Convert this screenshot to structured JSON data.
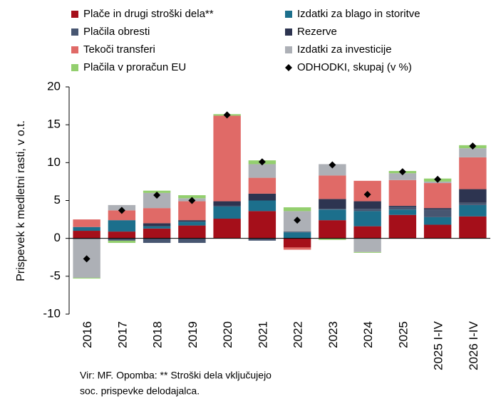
{
  "chart_data": {
    "type": "stacked_bar",
    "ylabel": "Prispevek k medletni rasti, v o.t.",
    "categories": [
      "2016",
      "2017",
      "2018",
      "2019",
      "2020",
      "2021",
      "2022",
      "2023",
      "2024",
      "2025",
      "2025 I-IV",
      "2026 I-IV"
    ],
    "series": [
      {
        "name": "Plače in drugi stroški dela**",
        "color": "#a50f1a",
        "values": [
          1.0,
          0.9,
          1.3,
          1.7,
          2.6,
          3.6,
          -1.2,
          2.4,
          1.6,
          3.1,
          1.8,
          2.9
        ]
      },
      {
        "name": "Izdatki za blago in storitve",
        "color": "#1c6f8c",
        "values": [
          0.5,
          1.5,
          0.3,
          0.5,
          1.6,
          1.4,
          0.8,
          1.4,
          2.0,
          0.7,
          1.0,
          1.5
        ]
      },
      {
        "name": "Plačila obresti",
        "color": "#475671",
        "values": [
          -0.1,
          -0.3,
          -0.6,
          -0.6,
          0.1,
          -0.3,
          0.1,
          0.1,
          0.3,
          0.4,
          1.0,
          0.3
        ]
      },
      {
        "name": "Rezerve",
        "color": "#2d3450",
        "values": [
          0,
          0,
          0.4,
          0.2,
          0.6,
          0.9,
          0,
          1.3,
          1.0,
          0.1,
          0.2,
          1.8
        ]
      },
      {
        "name": "Tekoči transferi",
        "color": "#e06a67",
        "values": [
          1.0,
          1.3,
          2.0,
          2.5,
          11.3,
          2.1,
          -0.3,
          3.1,
          2.7,
          3.4,
          3.3,
          4.2
        ]
      },
      {
        "name": "Izdatki za investicije",
        "color": "#adb0b6",
        "values": [
          -5.1,
          0.7,
          2.0,
          0.4,
          0,
          1.8,
          2.7,
          1.5,
          -1.8,
          0.9,
          0.2,
          1.2
        ]
      },
      {
        "name": "Plačila v proračun EU",
        "color": "#93cf6e",
        "values": [
          -0.1,
          -0.3,
          0.3,
          0.4,
          0.2,
          0.5,
          0.5,
          -0.2,
          -0.1,
          0.3,
          0.4,
          0.4
        ]
      },
      {
        "name": "ODHODKI, skupaj (v %)",
        "color": "#000000",
        "type": "diamond",
        "values": [
          -2.7,
          3.7,
          5.7,
          5.0,
          16.3,
          10.1,
          2.4,
          9.7,
          5.8,
          8.8,
          7.8,
          12.2
        ]
      }
    ],
    "ylim": [
      -10,
      20
    ],
    "yticks": [
      -10,
      -5,
      0,
      5,
      10,
      15,
      20
    ],
    "note": [
      "Vir: MF. Opomba: ** Stroški dela vključujejo",
      "soc. prispevke delodajalca."
    ]
  }
}
